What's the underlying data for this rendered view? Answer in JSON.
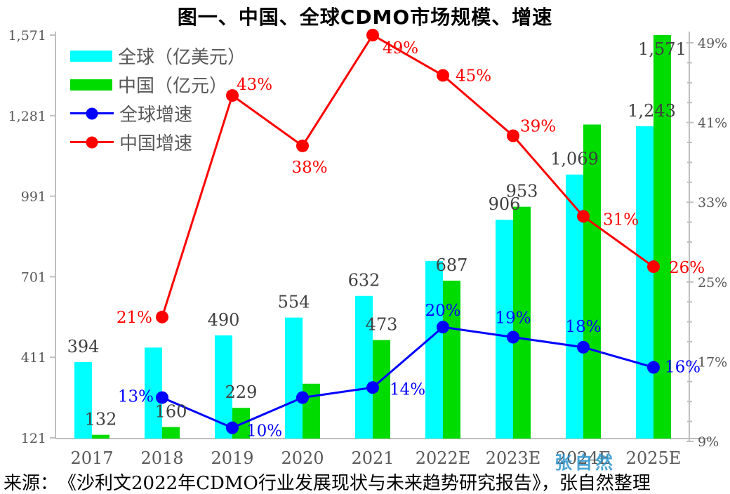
{
  "title": "图一、中国、全球CDMO市场规模、增速",
  "source": "来源：　《沙利文2022年CDMO行业发展现状与未来趋势研究报告》，张自然整理",
  "watermark": "张自然",
  "colors": {
    "global": "#00FFFF",
    "china": "#00DB00",
    "global_growth": "#0000FF",
    "china_growth": "#FF0000",
    "axis": "#BFBFBF",
    "bar_label": "#404040",
    "tick_label": "#595959",
    "watermark": "#2E96CE"
  },
  "chart_data": {
    "type": "combo",
    "grid": false,
    "legend_position": "top-left",
    "categories": [
      "2017",
      "2018",
      "2019",
      "2020",
      "2021",
      "2022E",
      "2023E",
      "2024E",
      "2025E"
    ],
    "series": [
      {
        "key": "global",
        "name": "全球（亿美元）",
        "type": "bar",
        "axis": "left",
        "color": "#00FFFF",
        "values": [
          394,
          446,
          490,
          554,
          632,
          758,
          906,
          1069,
          1243
        ],
        "value_labels": [
          "394",
          null,
          "490",
          "554",
          "632",
          null,
          "906",
          "1,069",
          {
            "text": "1,243",
            "dx": 10
          }
        ]
      },
      {
        "key": "china",
        "name": "中国（亿元）",
        "type": "bar",
        "axis": "left",
        "color": "#00DB00",
        "values": [
          132,
          160,
          229,
          316,
          473,
          687,
          953,
          1249,
          1571
        ],
        "value_labels": [
          "132",
          "160",
          "229",
          null,
          "473",
          "687",
          "953",
          null,
          {
            "text": "1,571",
            "dy": 28
          }
        ]
      },
      {
        "key": "global-growth",
        "name": "全球增速",
        "type": "line",
        "axis": "right",
        "color": "#0000FF",
        "values": [
          null,
          13,
          10,
          13,
          14,
          20,
          19,
          18,
          16
        ],
        "point_labels": [
          null,
          {
            "text": "13%",
            "anchor": "end",
            "dx": -12,
            "dy": 6
          },
          {
            "text": "10%",
            "anchor": "start",
            "dx": 20,
            "dy": 12
          },
          null,
          {
            "text": "14%",
            "anchor": "start",
            "dx": 24,
            "dy": 10
          },
          {
            "text": "20%",
            "anchor": "middle",
            "dx": 0,
            "dy": -16
          },
          {
            "text": "19%",
            "anchor": "middle",
            "dx": 0,
            "dy": -20
          },
          {
            "text": "18%",
            "anchor": "middle",
            "dx": 0,
            "dy": -22
          },
          {
            "text": "16%",
            "anchor": "start",
            "dx": 16,
            "dy": 7
          }
        ]
      },
      {
        "key": "china-growth",
        "name": "中国增速",
        "type": "line",
        "axis": "right",
        "color": "#FF0000",
        "values": [
          null,
          21,
          43,
          38,
          49,
          45,
          39,
          31,
          26
        ],
        "point_labels": [
          null,
          {
            "text": "21%",
            "anchor": "end",
            "dx": -14,
            "dy": 8
          },
          {
            "text": "43%",
            "anchor": "start",
            "dx": 6,
            "dy": -8
          },
          {
            "text": "38%",
            "anchor": "middle",
            "dx": 10,
            "dy": 38
          },
          {
            "text": "49%",
            "anchor": "start",
            "dx": 14,
            "dy": 26
          },
          {
            "text": "45%",
            "anchor": "start",
            "dx": 18,
            "dy": 8
          },
          {
            "text": "39%",
            "anchor": "start",
            "dx": 10,
            "dy": -6
          },
          {
            "text": "31%",
            "anchor": "start",
            "dx": 28,
            "dy": 12
          },
          {
            "text": "26%",
            "anchor": "start",
            "dx": 22,
            "dy": 9
          }
        ]
      }
    ],
    "left_axis": {
      "min": 121,
      "max": 1571,
      "tick_values": [
        121,
        411,
        701,
        991,
        1281,
        1571
      ],
      "tick_labels": [
        "121",
        "411",
        "701",
        "991",
        "1,281",
        "1,571"
      ]
    },
    "right_axis": {
      "min": 9,
      "max": 49,
      "minor_step": 2,
      "tick_values": [
        9,
        17,
        25,
        33,
        41,
        49
      ],
      "tick_labels": [
        "9%",
        "17%",
        "25%",
        "33%",
        "41%",
        "49%"
      ]
    }
  }
}
